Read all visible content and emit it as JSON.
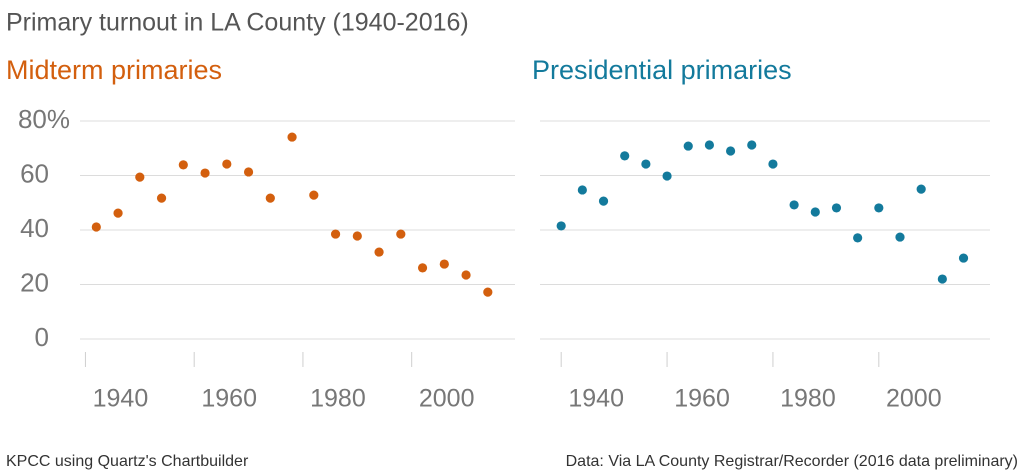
{
  "title": "Primary turnout in LA County (1940-2016)",
  "credit": "KPCC using Quartz's Chartbuilder",
  "source": "Data: Via LA County Registrar/Recorder (2016 data preliminary)",
  "chart_data": [
    {
      "type": "scatter",
      "title": "Midterm primaries",
      "color": "#d35f0e",
      "x": [
        1942,
        1946,
        1950,
        1954,
        1958,
        1962,
        1966,
        1970,
        1974,
        1978,
        1982,
        1986,
        1990,
        1994,
        1998,
        2002,
        2006,
        2010,
        2014
      ],
      "values": [
        41.1,
        46.2,
        59.4,
        51.7,
        63.9,
        60.9,
        64.2,
        61.3,
        51.7,
        74.1,
        52.8,
        38.5,
        37.8,
        31.9,
        38.5,
        26.1,
        27.5,
        23.5,
        17.2
      ],
      "xlim": [
        1939,
        2019
      ],
      "xticks": [
        1940,
        1960,
        1980,
        2000
      ],
      "ylim": [
        0,
        80
      ],
      "yticks": [
        0,
        20,
        40,
        60,
        {
          "value": 80,
          "label": "80%"
        }
      ],
      "grid": true
    },
    {
      "type": "scatter",
      "title": "Presidential primaries",
      "color": "#137a9c",
      "x": [
        1940,
        1944,
        1948,
        1952,
        1956,
        1960,
        1964,
        1968,
        1972,
        1976,
        1980,
        1984,
        1988,
        1992,
        1996,
        2000,
        2004,
        2008,
        2012,
        2016
      ],
      "values": [
        41.5,
        54.7,
        50.6,
        67.2,
        64.2,
        59.8,
        70.8,
        71.2,
        69.0,
        71.2,
        64.2,
        49.2,
        46.6,
        48.1,
        37.1,
        48.1,
        37.4,
        55.0,
        22.0,
        29.7
      ],
      "xlim": [
        1936,
        2021
      ],
      "xticks": [
        1940,
        1960,
        1980,
        2000
      ],
      "ylim": [
        0,
        80
      ],
      "yticks": [
        0,
        20,
        40,
        60,
        80
      ],
      "grid": true
    }
  ]
}
